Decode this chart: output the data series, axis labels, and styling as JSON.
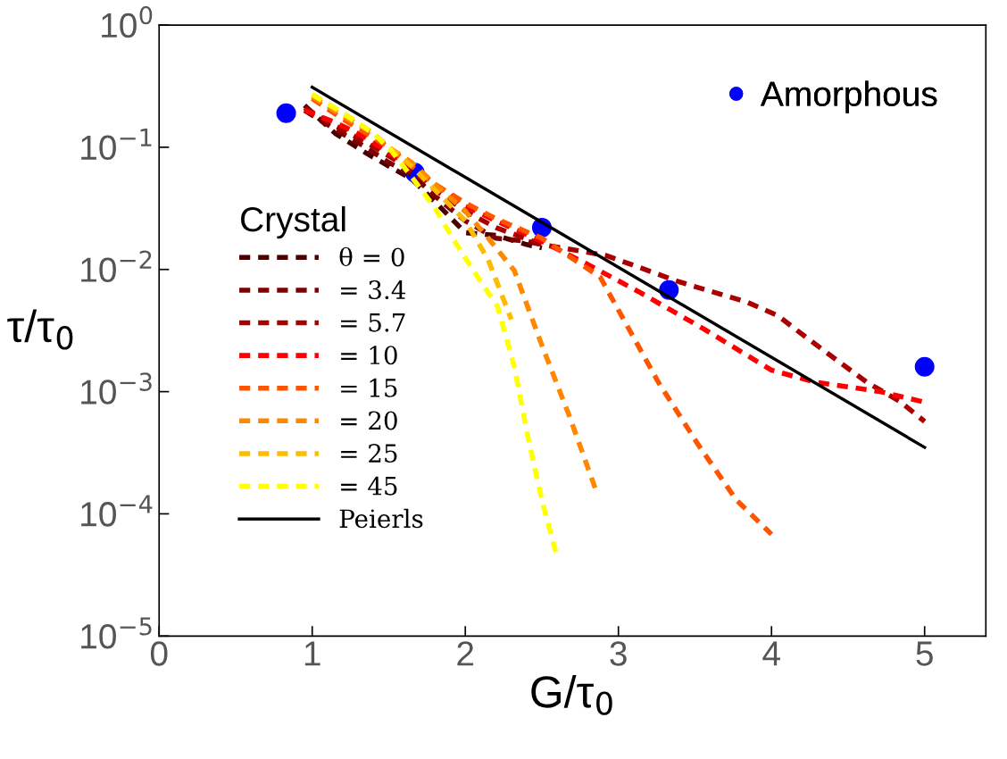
{
  "chart_data": {
    "type": "line",
    "xlabel": "G/τ$_{0}$",
    "ylabel": "τ/τ$_{0}$",
    "legend_title": "Crystal",
    "legend": "left",
    "log": "y",
    "grid": false,
    "line_style": "dashed",
    "marker": "none",
    "xlim": [
      0,
      5.4
    ],
    "xticks": [
      0,
      1,
      2,
      3,
      4,
      5
    ],
    "ylim": [
      1e-05,
      1
    ],
    "yticks": [
      {
        "value": 1,
        "label": "10$^{0}$"
      },
      {
        "value": 0.1,
        "label": "10$^{−1}$"
      },
      {
        "value": 0.01,
        "label": "10$^{−2}$"
      },
      {
        "value": 0.001,
        "label": "10$^{−3}$"
      },
      {
        "value": 0.0001,
        "label": "10$^{−4}$"
      },
      {
        "value": 1e-05,
        "label": "10$^{−5}$"
      }
    ],
    "series": [
      {
        "name": "θ = 0",
        "color": "#4a0000",
        "x": [
          0.95,
          1.15,
          1.35,
          1.5,
          1.65,
          1.8,
          2.0,
          2.2,
          2.4,
          2.5
        ],
        "values": [
          0.22,
          0.13,
          0.09,
          0.07,
          0.055,
          0.036,
          0.02,
          0.019,
          0.016,
          0.015
        ]
      },
      {
        "name": "= 3.4",
        "color": "#7f0000",
        "x": [
          0.95,
          1.15,
          1.35,
          1.5,
          1.65,
          1.8,
          2.0,
          2.2,
          2.4,
          2.5
        ],
        "values": [
          0.2,
          0.14,
          0.1,
          0.075,
          0.06,
          0.04,
          0.025,
          0.018,
          0.017,
          0.016
        ]
      },
      {
        "name": "= 5.7",
        "color": "#aa0000",
        "x": [
          0.95,
          1.15,
          1.35,
          1.5,
          1.65,
          1.8,
          2.0,
          2.2,
          2.5,
          2.92,
          3.4,
          3.84,
          4.04,
          4.24,
          4.62,
          4.84,
          5.0
        ],
        "values": [
          0.21,
          0.15,
          0.11,
          0.085,
          0.065,
          0.045,
          0.03,
          0.022,
          0.016,
          0.013,
          0.0079,
          0.0054,
          0.0042,
          0.0027,
          0.0012,
          0.00083,
          0.00057
        ]
      },
      {
        "name": "= 10",
        "color": "#ff0000",
        "x": [
          0.95,
          1.15,
          1.35,
          1.5,
          1.65,
          1.8,
          2.0,
          2.2,
          2.5,
          2.8,
          3.13,
          3.55,
          4.0,
          4.28,
          4.71,
          5.0
        ],
        "values": [
          0.2,
          0.16,
          0.12,
          0.09,
          0.07,
          0.05,
          0.033,
          0.025,
          0.017,
          0.011,
          0.0066,
          0.0033,
          0.0015,
          0.0012,
          0.001,
          0.00082
        ]
      },
      {
        "name": "= 15",
        "color": "#ff5500",
        "x": [
          1.0,
          1.2,
          1.4,
          1.5,
          1.65,
          1.8,
          2.0,
          2.2,
          2.5,
          2.88,
          3.26,
          3.52,
          3.77,
          4.0
        ],
        "values": [
          0.25,
          0.17,
          0.12,
          0.1,
          0.07,
          0.05,
          0.035,
          0.026,
          0.018,
          0.0087,
          0.0012,
          0.00037,
          0.00013,
          6.8e-05
        ]
      },
      {
        "name": "= 20",
        "color": "#ff8800",
        "x": [
          1.0,
          1.2,
          1.4,
          1.5,
          1.65,
          1.8,
          2.0,
          2.15,
          2.32,
          2.5,
          2.68,
          2.85
        ],
        "values": [
          0.26,
          0.18,
          0.13,
          0.1,
          0.075,
          0.05,
          0.03,
          0.018,
          0.0098,
          0.0024,
          0.00063,
          0.00016
        ]
      },
      {
        "name": "= 25",
        "color": "#ffbb00",
        "x": [
          1.0,
          1.2,
          1.4,
          1.5,
          1.65,
          1.8,
          2.0,
          2.15,
          2.3
        ],
        "values": [
          0.27,
          0.19,
          0.13,
          0.1,
          0.07,
          0.045,
          0.025,
          0.012,
          0.0039
        ]
      },
      {
        "name": "= 45",
        "color": "#ffff00",
        "x": [
          1.0,
          1.2,
          1.4,
          1.51,
          1.66,
          1.8,
          1.93,
          2.08,
          2.21,
          2.32,
          2.41,
          2.5,
          2.6
        ],
        "values": [
          0.27,
          0.19,
          0.13,
          0.096,
          0.055,
          0.032,
          0.017,
          0.0087,
          0.005,
          0.0016,
          0.00042,
          0.00013,
          4.4e-05
        ]
      },
      {
        "name": "Peierls",
        "color": "#000000",
        "line_style": "solid",
        "x": [
          1.0,
          5.0
        ],
        "values": [
          0.31,
          0.00035
        ]
      },
      {
        "name": "Amorphous",
        "type": "scatter",
        "marker": "circle",
        "color": "#0000ff",
        "x": [
          0.83,
          1.67,
          2.5,
          3.33,
          5.0
        ],
        "values": [
          0.19,
          0.062,
          0.022,
          0.0068,
          0.0016
        ]
      }
    ]
  }
}
